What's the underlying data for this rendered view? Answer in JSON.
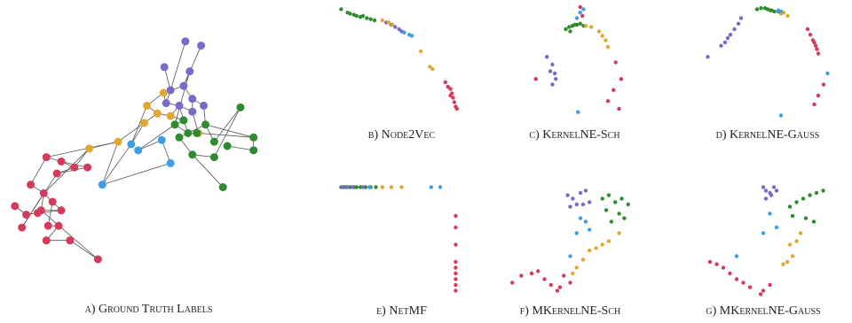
{
  "chart_data": [
    {
      "type": "network",
      "caption": "a) Ground Truth Labels",
      "xlim": [
        0,
        330
      ],
      "ylim": [
        330,
        0
      ],
      "colors": [
        "#7b68c8",
        "#e0a830",
        "#2e8b2e",
        "#3a9ee8",
        "#d63a5a"
      ],
      "x": [
        207,
        225,
        183,
        212,
        190,
        205,
        215,
        200,
        185,
        228,
        215,
        182,
        163,
        190,
        175,
        160,
        130,
        97,
        222,
        205,
        195,
        210,
        230,
        240,
        270,
        285,
        285,
        255,
        240,
        215,
        250,
        220,
        200,
        145,
        180,
        153,
        190,
        112,
        48,
        65,
        80,
        60,
        95,
        30,
        45,
        55,
        65,
        12,
        25,
        38,
        50,
        62,
        20,
        48,
        75,
        107,
        42
      ],
      "values": [
        43,
        48,
        73,
        78,
        100,
        95,
        110,
        118,
        115,
        118,
        125,
        103,
        118,
        130,
        127,
        138,
        160,
        168,
        150,
        135,
        140,
        150,
        140,
        160,
        120,
        155,
        170,
        165,
        178,
        175,
        213,
        150,
        155,
        163,
        158,
        170,
        185,
        210,
        178,
        183,
        190,
        197,
        190,
        210,
        220,
        230,
        240,
        235,
        245,
        243,
        258,
        258,
        260,
        275,
        275,
        297,
        240
      ],
      "groups": [
        0,
        0,
        0,
        0,
        0,
        0,
        0,
        0,
        0,
        0,
        0,
        1,
        1,
        1,
        1,
        1,
        1,
        1,
        1,
        2,
        2,
        2,
        2,
        2,
        2,
        2,
        2,
        2,
        2,
        2,
        2,
        2,
        2,
        3,
        3,
        3,
        3,
        3,
        4,
        4,
        4,
        4,
        4,
        4,
        4,
        4,
        4,
        4,
        4,
        4,
        4,
        4,
        4,
        4,
        4,
        4,
        4
      ],
      "edges": [
        [
          0,
          4
        ],
        [
          1,
          5
        ],
        [
          2,
          4
        ],
        [
          3,
          5
        ],
        [
          4,
          5
        ],
        [
          4,
          8
        ],
        [
          5,
          6
        ],
        [
          6,
          9
        ],
        [
          6,
          10
        ],
        [
          7,
          8
        ],
        [
          7,
          10
        ],
        [
          8,
          11
        ],
        [
          11,
          12
        ],
        [
          11,
          4
        ],
        [
          12,
          14
        ],
        [
          13,
          14
        ],
        [
          13,
          7
        ],
        [
          14,
          15
        ],
        [
          15,
          16
        ],
        [
          16,
          17
        ],
        [
          17,
          40
        ],
        [
          12,
          33
        ],
        [
          15,
          33
        ],
        [
          7,
          19
        ],
        [
          19,
          20
        ],
        [
          19,
          21
        ],
        [
          20,
          21
        ],
        [
          21,
          22
        ],
        [
          22,
          23
        ],
        [
          23,
          24
        ],
        [
          22,
          25
        ],
        [
          25,
          26
        ],
        [
          26,
          27
        ],
        [
          24,
          28
        ],
        [
          28,
          29
        ],
        [
          29,
          30
        ],
        [
          21,
          32
        ],
        [
          32,
          29
        ],
        [
          20,
          35
        ],
        [
          35,
          34
        ],
        [
          34,
          36
        ],
        [
          36,
          37
        ],
        [
          37,
          16
        ],
        [
          16,
          38
        ],
        [
          38,
          39
        ],
        [
          39,
          40
        ],
        [
          40,
          41
        ],
        [
          41,
          42
        ],
        [
          38,
          43
        ],
        [
          43,
          44
        ],
        [
          44,
          45
        ],
        [
          45,
          46
        ],
        [
          47,
          48
        ],
        [
          48,
          49
        ],
        [
          46,
          49
        ],
        [
          45,
          50
        ],
        [
          50,
          51
        ],
        [
          51,
          53
        ],
        [
          53,
          54
        ],
        [
          46,
          56
        ],
        [
          56,
          55
        ],
        [
          54,
          55
        ],
        [
          41,
          52
        ],
        [
          52,
          44
        ],
        [
          39,
          42
        ],
        [
          44,
          56
        ],
        [
          17,
          44
        ],
        [
          10,
          18
        ],
        [
          18,
          25
        ],
        [
          9,
          22
        ],
        [
          3,
          20
        ],
        [
          33,
          37
        ],
        [
          13,
          19
        ],
        [
          31,
          21
        ]
      ]
    },
    {
      "type": "scatter",
      "caption": "b) Node2Vec",
      "xlim": [
        0,
        100
      ],
      "ylim": [
        0,
        100
      ],
      "series": [
        {
          "color": "#2e8b2e",
          "x": [
            3,
            8,
            10,
            13,
            15,
            18,
            20,
            23,
            26,
            29
          ],
          "values": [
            98,
            95,
            94,
            93,
            92,
            91,
            92,
            90,
            89,
            88
          ]
        },
        {
          "color": "#7b68c8",
          "x": [
            38,
            42,
            45,
            48,
            50
          ],
          "values": [
            86,
            84,
            82,
            80,
            78
          ]
        },
        {
          "color": "#e0a830",
          "x": [
            35,
            40,
            43,
            65,
            72,
            74
          ],
          "values": [
            88,
            86,
            84,
            60,
            46,
            44
          ]
        },
        {
          "color": "#3a9ee8",
          "x": [
            52,
            56,
            58
          ],
          "values": [
            77,
            75,
            74
          ]
        },
        {
          "color": "#d63a5a",
          "x": [
            84,
            86,
            88,
            89,
            90,
            91,
            92,
            93,
            88
          ],
          "values": [
            32,
            28,
            26,
            22,
            18,
            14,
            10,
            8,
            20
          ]
        }
      ]
    },
    {
      "type": "scatter",
      "caption": "c) KernelNE-Sch",
      "xlim": [
        0,
        100
      ],
      "ylim": [
        0,
        100
      ],
      "series": [
        {
          "color": "#2e8b2e",
          "x": [
            42,
            45,
            48,
            50,
            52,
            55,
            58,
            46
          ],
          "values": [
            80,
            82,
            83,
            84,
            84,
            85,
            83,
            78
          ]
        },
        {
          "color": "#e0a830",
          "x": [
            60,
            65,
            72,
            75,
            78,
            80
          ],
          "values": [
            83,
            82,
            78,
            74,
            70,
            64
          ]
        },
        {
          "color": "#7b68c8",
          "x": [
            25,
            30,
            28,
            32,
            30,
            33
          ],
          "values": [
            55,
            48,
            42,
            40,
            30,
            35
          ]
        },
        {
          "color": "#3a9ee8",
          "x": [
            52,
            55,
            58,
            53
          ],
          "values": [
            90,
            95,
            98,
            5
          ]
        },
        {
          "color": "#d63a5a",
          "x": [
            55,
            57,
            15,
            87,
            92,
            85,
            80,
            90
          ],
          "values": [
            100,
            92,
            35,
            50,
            35,
            25,
            15,
            8
          ]
        }
      ]
    },
    {
      "type": "scatter",
      "caption": "d) KernelNE-Gauss",
      "xlim": [
        0,
        100
      ],
      "ylim": [
        0,
        100
      ],
      "series": [
        {
          "color": "#2e8b2e",
          "x": [
            42,
            45,
            48,
            50,
            53,
            55,
            58,
            52
          ],
          "values": [
            98,
            99,
            99,
            98,
            97,
            96,
            96,
            97
          ]
        },
        {
          "color": "#e0a830",
          "x": [
            62,
            65,
            60
          ],
          "values": [
            95,
            92,
            94
          ]
        },
        {
          "color": "#3a9ee8",
          "x": [
            58,
            60,
            95,
            60
          ],
          "values": [
            97,
            96,
            40,
            2
          ]
        },
        {
          "color": "#7b68c8",
          "x": [
            5,
            15,
            18,
            20,
            22,
            25,
            28,
            30
          ],
          "values": [
            55,
            65,
            68,
            72,
            75,
            80,
            85,
            90
          ]
        },
        {
          "color": "#d63a5a",
          "x": [
            80,
            82,
            84,
            85,
            86,
            87,
            88,
            88,
            85,
            92
          ],
          "values": [
            80,
            75,
            70,
            68,
            65,
            62,
            58,
            20,
            12,
            30
          ]
        }
      ]
    },
    {
      "type": "scatter",
      "caption": "e) NetMF",
      "xlim": [
        0,
        100
      ],
      "ylim": [
        0,
        100
      ],
      "series": [
        {
          "color": "#2e8b2e",
          "x": [
            3,
            5,
            7,
            10,
            13,
            15,
            18,
            22,
            26,
            30
          ],
          "values": [
            95,
            95,
            95,
            95,
            95,
            95,
            95,
            95,
            95,
            95
          ]
        },
        {
          "color": "#7b68c8",
          "x": [
            4,
            8,
            12,
            20
          ],
          "values": [
            95,
            95,
            95,
            95
          ]
        },
        {
          "color": "#e0a830",
          "x": [
            35,
            42,
            50
          ],
          "values": [
            95,
            95,
            95
          ]
        },
        {
          "color": "#3a9ee8",
          "x": [
            25,
            73,
            80
          ],
          "values": [
            95,
            95,
            95
          ]
        },
        {
          "color": "#d63a5a",
          "x": [
            92,
            92,
            92,
            92,
            92,
            92,
            92,
            92,
            92
          ],
          "values": [
            70,
            60,
            45,
            30,
            25,
            20,
            15,
            10,
            5
          ]
        }
      ]
    },
    {
      "type": "scatter",
      "caption": "f) MKernelNE-Sch",
      "xlim": [
        0,
        100
      ],
      "ylim": [
        0,
        100
      ],
      "series": [
        {
          "color": "#7b68c8",
          "x": [
            48,
            52,
            58,
            62,
            60,
            65,
            50,
            55
          ],
          "values": [
            88,
            85,
            90,
            92,
            80,
            82,
            78,
            80
          ]
        },
        {
          "color": "#2e8b2e",
          "x": [
            75,
            80,
            85,
            90,
            95,
            78,
            88,
            92,
            82
          ],
          "values": [
            85,
            88,
            82,
            85,
            80,
            75,
            72,
            68,
            65
          ]
        },
        {
          "color": "#3a9ee8",
          "x": [
            58,
            62,
            55,
            65,
            50
          ],
          "values": [
            68,
            65,
            55,
            58,
            35
          ]
        },
        {
          "color": "#e0a830",
          "x": [
            88,
            80,
            75,
            70,
            65,
            60,
            55,
            52
          ],
          "values": [
            55,
            48,
            45,
            42,
            40,
            32,
            25,
            20
          ]
        },
        {
          "color": "#d63a5a",
          "x": [
            5,
            12,
            20,
            25,
            30,
            35,
            40,
            45,
            50,
            42
          ],
          "values": [
            12,
            18,
            20,
            22,
            15,
            10,
            5,
            18,
            12,
            8
          ]
        }
      ]
    },
    {
      "type": "scatter",
      "caption": "g) MKernelNE-Gauss",
      "xlim": [
        0,
        100
      ],
      "ylim": [
        0,
        100
      ],
      "series": [
        {
          "color": "#7b68c8",
          "x": [
            50,
            52,
            55,
            58,
            60,
            52,
            56
          ],
          "values": [
            95,
            92,
            90,
            95,
            92,
            85,
            88
          ]
        },
        {
          "color": "#2e8b2e",
          "x": [
            70,
            75,
            80,
            85,
            90,
            95,
            72,
            82,
            88
          ],
          "values": [
            78,
            82,
            85,
            88,
            90,
            92,
            70,
            68,
            65
          ]
        },
        {
          "color": "#3a9ee8",
          "x": [
            55,
            60,
            50,
            30
          ],
          "values": [
            72,
            60,
            55,
            35
          ]
        },
        {
          "color": "#e0a830",
          "x": [
            78,
            75,
            70,
            72,
            68,
            65
          ],
          "values": [
            55,
            48,
            45,
            35,
            30,
            28
          ]
        },
        {
          "color": "#d63a5a",
          "x": [
            10,
            15,
            20,
            25,
            30,
            35,
            40,
            50,
            55,
            48
          ],
          "values": [
            30,
            28,
            25,
            20,
            15,
            12,
            8,
            5,
            10,
            2
          ]
        }
      ]
    }
  ]
}
